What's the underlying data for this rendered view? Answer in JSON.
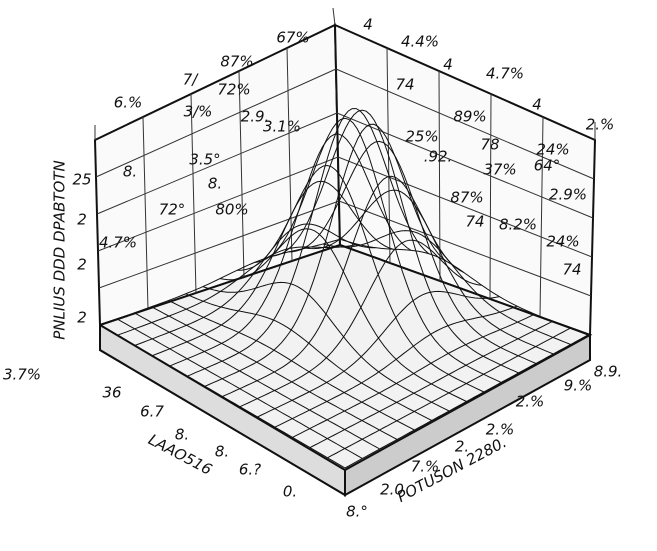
{
  "y_axis": {
    "title": "PNLIUS DDD DPABTOTN",
    "ticks": [
      "25",
      "2",
      "2",
      "2"
    ]
  },
  "left_wall": {
    "labels": [
      "6.%",
      "7/",
      "87%",
      "67%",
      "8.",
      "3/%",
      "72%",
      "2.9.",
      "3.1%",
      "3.5°",
      "8.",
      "72°",
      "80%",
      "4.7%"
    ]
  },
  "right_wall": {
    "labels": [
      "4",
      "4.4%",
      "4",
      "4.7%",
      "4",
      "2.%",
      "74",
      "89%",
      "25%",
      "78",
      "24%",
      ".92.",
      "37%",
      "64°",
      "87%",
      "2.9%",
      "74",
      "8.2%",
      "24%",
      "74"
    ]
  },
  "x_axis": {
    "title": "LAAO516",
    "ticks": [
      "3.7%",
      "36",
      "6.7",
      "8.",
      "8.",
      "6.?",
      "0."
    ]
  },
  "z_axis": {
    "title": "POTUSON 2280.",
    "ticks": [
      "8.9.",
      "9.%",
      "2.%",
      "2.%",
      "2.",
      "7.%",
      "2.0",
      "8.°"
    ]
  }
}
